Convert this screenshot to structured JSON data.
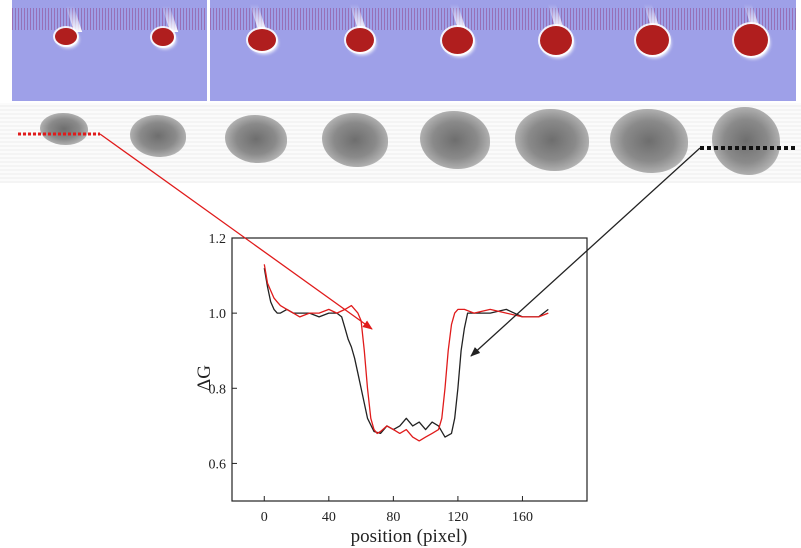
{
  "chart_data": {
    "type": "line",
    "ylabel": "ΔG",
    "xlabel": "position (pixel)",
    "xlim": [
      -20,
      200
    ],
    "ylim": [
      0.5,
      1.2
    ],
    "xticks": [
      "0",
      "40",
      "80",
      "120",
      "160"
    ],
    "yticks": [
      "0.6",
      "0.8",
      "1.0",
      "1.2"
    ],
    "series": [
      {
        "color": "#222222",
        "x": [
          0,
          2,
          4,
          6,
          8,
          10,
          14,
          18,
          22,
          28,
          34,
          40,
          45,
          48,
          50,
          52,
          54,
          56,
          58,
          60,
          64,
          68,
          72,
          76,
          80,
          84,
          88,
          92,
          96,
          100,
          104,
          108,
          112,
          116,
          118,
          120,
          122,
          124,
          126,
          130,
          140,
          150,
          160,
          170,
          176
        ],
        "y": [
          1.12,
          1.07,
          1.03,
          1.01,
          1.0,
          1.0,
          1.01,
          1.0,
          1.0,
          1.0,
          0.99,
          1.0,
          1.0,
          0.99,
          0.96,
          0.93,
          0.91,
          0.88,
          0.84,
          0.8,
          0.72,
          0.685,
          0.68,
          0.7,
          0.69,
          0.7,
          0.72,
          0.7,
          0.71,
          0.69,
          0.71,
          0.7,
          0.67,
          0.68,
          0.72,
          0.8,
          0.9,
          0.96,
          1.0,
          1.0,
          1.0,
          1.01,
          0.99,
          0.99,
          1.01
        ]
      },
      {
        "color": "#e01b1b",
        "x": [
          0,
          2,
          4,
          6,
          8,
          10,
          14,
          18,
          22,
          28,
          34,
          40,
          45,
          50,
          54,
          58,
          60,
          62,
          64,
          66,
          68,
          70,
          72,
          76,
          80,
          84,
          88,
          92,
          96,
          100,
          104,
          108,
          110,
          112,
          114,
          116,
          118,
          120,
          124,
          130,
          140,
          150,
          160,
          170,
          176
        ],
        "y": [
          1.13,
          1.08,
          1.06,
          1.04,
          1.03,
          1.02,
          1.01,
          1.0,
          0.99,
          1.0,
          1.0,
          1.01,
          1.0,
          1.01,
          1.02,
          1.0,
          0.98,
          0.9,
          0.8,
          0.72,
          0.69,
          0.68,
          0.685,
          0.7,
          0.69,
          0.68,
          0.69,
          0.67,
          0.66,
          0.67,
          0.68,
          0.69,
          0.72,
          0.8,
          0.9,
          0.97,
          1.0,
          1.01,
          1.01,
          1.0,
          1.01,
          1.0,
          0.99,
          0.99,
          1.0
        ]
      }
    ]
  },
  "images": {
    "top_strip": {
      "drops": [
        1,
        2,
        3,
        4,
        5,
        6,
        7,
        8
      ]
    },
    "mid_strip": {
      "shadows": [
        1,
        2,
        3,
        4,
        5,
        6,
        7,
        8
      ]
    }
  }
}
